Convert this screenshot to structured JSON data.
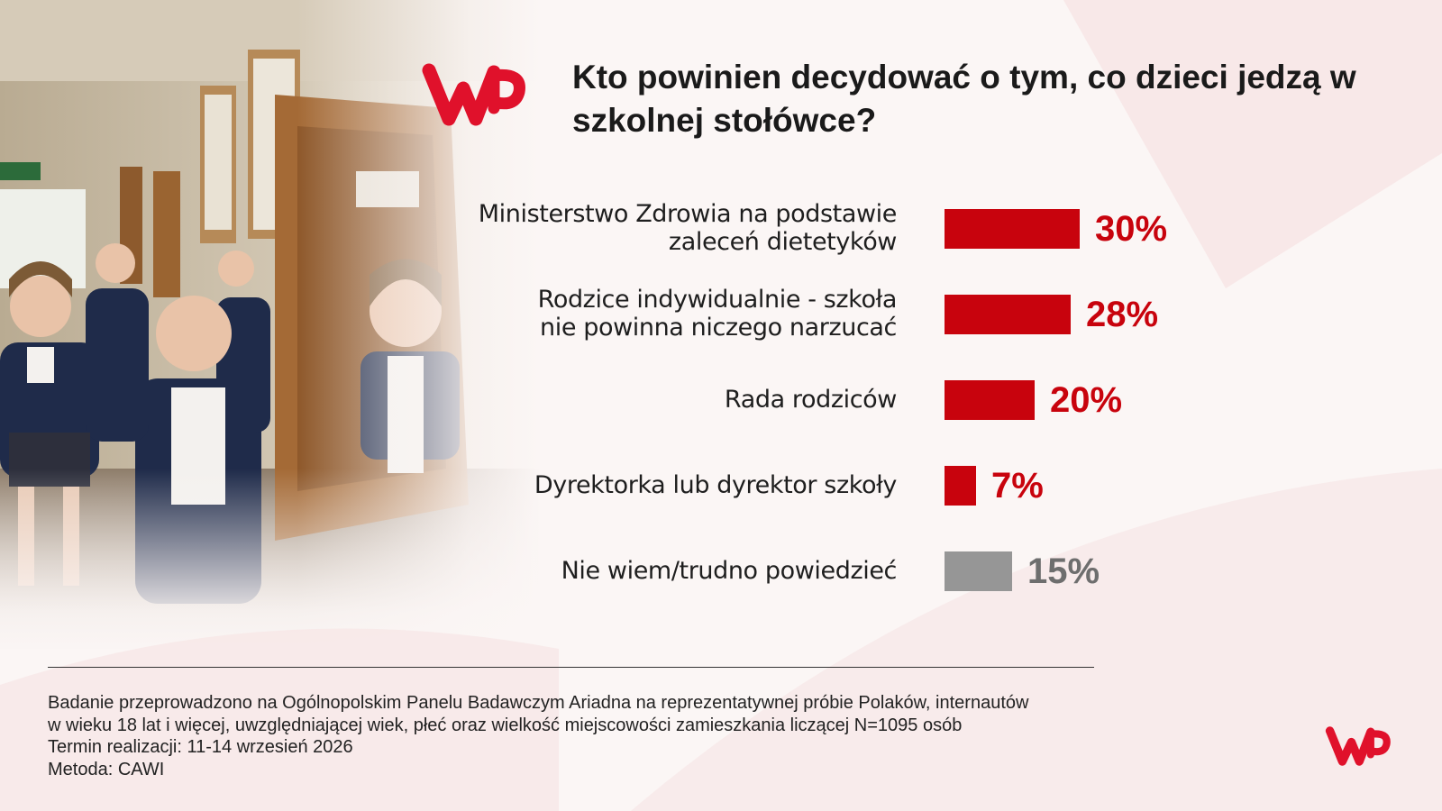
{
  "title": "Kto powinien decydować o tym, co dzieci jedzą w szkolnej stołówce?",
  "logo_text": "WP",
  "colors": {
    "accent": "#c8030d",
    "neutral": "#969696",
    "title": "#1a1a1a"
  },
  "chart_data": {
    "type": "bar",
    "orientation": "horizontal",
    "title": "Kto powinien decydować o tym, co dzieci jedzą w szkolnej stołówce?",
    "categories": [
      "Ministerstwo Zdrowia na podstawie\nzaleceń dietetyków",
      "Rodzice indywidualnie - szkoła\nnie powinna niczego narzucać",
      "Rada rodziców",
      "Dyrektorka lub dyrektor szkoły",
      "Nie wiem/trudno powiedzieć"
    ],
    "values": [
      30,
      28,
      20,
      7,
      15
    ],
    "value_labels": [
      "30%",
      "28%",
      "20%",
      "7%",
      "15%"
    ],
    "bar_colors": [
      "#c8030d",
      "#c8030d",
      "#c8030d",
      "#c8030d",
      "#969696"
    ],
    "unit": "%",
    "xlim": [
      0,
      100
    ],
    "grid": false,
    "legend": "none"
  },
  "footer": {
    "lines": [
      "Badanie przeprowadzono na Ogólnopolskim Panelu Badawczym Ariadna na reprezentatywnej próbie Polaków, internautów",
      "w wieku 18 lat i więcej, uwzględniającej wiek, płeć oraz wielkość miejscowości zamieszkania liczącej N=1095 osób",
      "Termin realizacji: 11-14 wrzesień 2026",
      "Metoda: CAWI"
    ]
  }
}
